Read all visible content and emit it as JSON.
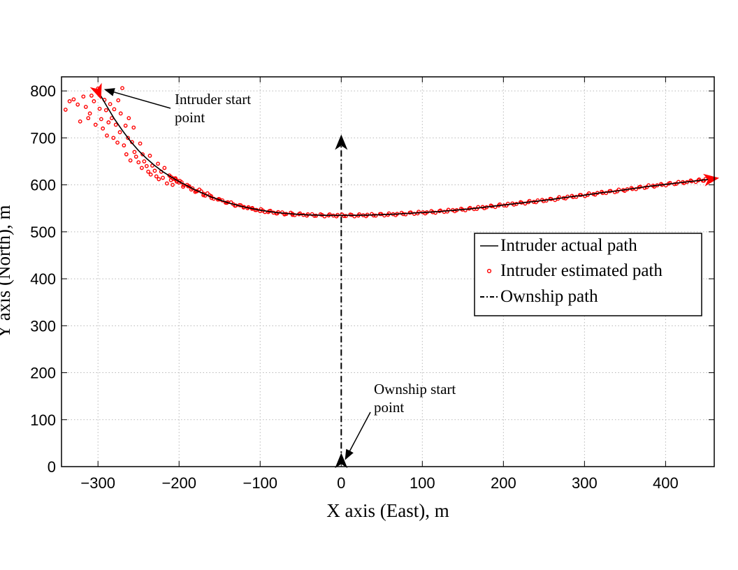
{
  "chart_data": {
    "type": "scatter",
    "xlabel": "X axis (East), m",
    "ylabel": "Y axis (North), m",
    "xlim": [
      -345,
      460
    ],
    "ylim": [
      0,
      830
    ],
    "xticks": [
      -300,
      -200,
      -100,
      0,
      100,
      200,
      300,
      400
    ],
    "yticks": [
      0,
      100,
      200,
      300,
      400,
      500,
      600,
      700,
      800
    ],
    "xtick_labels": [
      "−300",
      "−200",
      "−100",
      "0",
      "100",
      "200",
      "300",
      "400"
    ],
    "ytick_labels": [
      "0",
      "100",
      "200",
      "300",
      "400",
      "500",
      "600",
      "700",
      "800"
    ],
    "grid": true,
    "legend_position": "right",
    "colors": {
      "intruder": "#ff0000",
      "actual": "#000000",
      "ownship": "#000000"
    },
    "series": [
      {
        "name": "Intruder actual path",
        "style": "solid line",
        "x": [
          -300,
          -290,
          -280,
          -270,
          -260,
          -250,
          -240,
          -230,
          -220,
          -210,
          -200,
          -180,
          -160,
          -140,
          -120,
          -100,
          -80,
          -60,
          -40,
          -20,
          0,
          20,
          40,
          60,
          80,
          100,
          120,
          140,
          160,
          180,
          200,
          220,
          240,
          260,
          280,
          300,
          320,
          340,
          360,
          380,
          400,
          420,
          440,
          455
        ],
        "y": [
          800,
          770,
          741,
          716,
          693,
          673,
          656,
          641,
          628,
          617,
          607,
          589,
          574,
          562,
          553,
          546,
          541,
          538,
          536,
          535,
          535,
          535,
          536,
          537,
          539,
          541,
          543,
          546,
          549,
          553,
          557,
          561,
          565,
          569,
          574,
          578,
          583,
          587,
          592,
          597,
          601,
          605,
          609,
          612
        ]
      },
      {
        "name": "Intruder estimated path",
        "style": "red circle markers",
        "x": [
          -340,
          -335,
          -330,
          -325,
          -322,
          -318,
          -315,
          -312,
          -310,
          -308,
          -305,
          -303,
          -300,
          -298,
          -296,
          -294,
          -292,
          -290,
          -289,
          -287,
          -285,
          -283,
          -281,
          -280,
          -278,
          -276,
          -275,
          -273,
          -272,
          -270,
          -268,
          -266,
          -265,
          -263,
          -262,
          -260,
          -258,
          -256,
          -255,
          -253,
          -250,
          -248,
          -246,
          -245,
          -243,
          -240,
          -238,
          -236,
          -235,
          -233,
          -230,
          -228,
          -226,
          -225,
          -222,
          -220,
          -218,
          -215,
          -212,
          -210,
          -208,
          -205,
          -200,
          -195,
          -190,
          -185,
          -180,
          -175,
          -170,
          -165,
          -160,
          -150,
          -140,
          -130,
          -120,
          -110,
          -100,
          -90,
          -80,
          -70,
          -60
        ],
        "y": [
          760,
          778,
          782,
          771,
          735,
          788,
          766,
          742,
          752,
          790,
          778,
          728,
          805,
          762,
          740,
          720,
          781,
          759,
          705,
          733,
          772,
          742,
          700,
          761,
          728,
          690,
          780,
          712,
          752,
          806,
          684,
          726,
          665,
          700,
          742,
          652,
          691,
          722,
          670,
          660,
          648,
          688,
          636,
          665,
          650,
          640,
          628,
          662,
          622,
          641,
          630,
          618,
          645,
          612,
          628,
          615,
          636,
          603,
          620,
          610,
          600,
          612,
          605,
          596,
          600,
          590,
          585,
          590,
          578,
          582,
          572,
          569,
          563,
          556,
          553,
          549,
          544,
          542,
          539,
          537,
          536
        ]
      },
      {
        "name": "Ownship path",
        "style": "dash-dot line",
        "x": [
          0,
          0
        ],
        "y": [
          10,
          688
        ]
      }
    ],
    "annotations": [
      {
        "lines": [
          "Intruder start",
          "point"
        ],
        "target": [
          -300,
          800
        ]
      },
      {
        "lines": [
          "Ownship start",
          "point"
        ],
        "target": [
          0,
          10
        ]
      }
    ]
  }
}
